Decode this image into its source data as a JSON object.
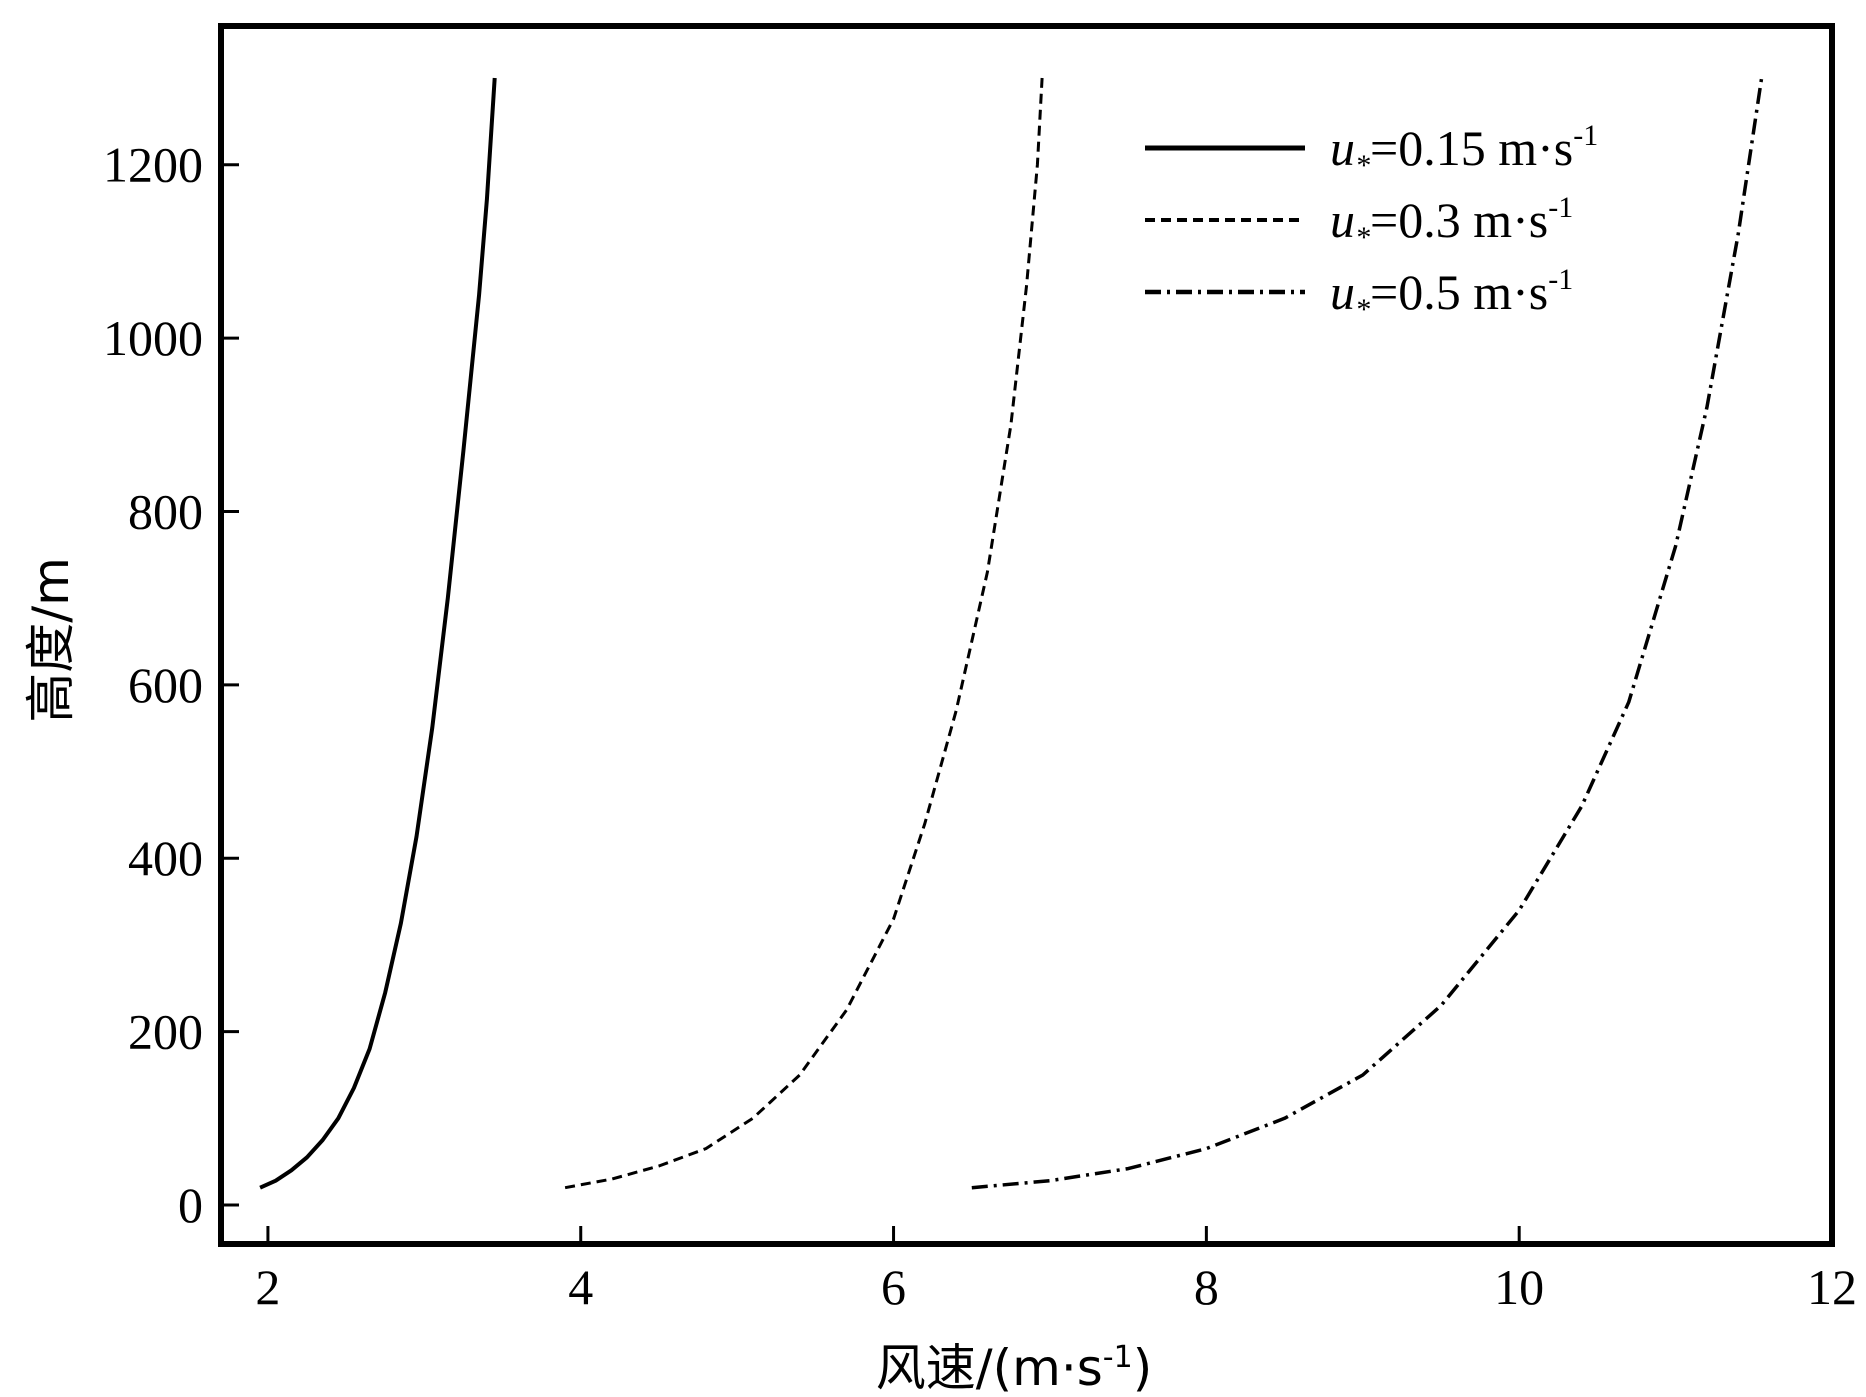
{
  "chart_data": {
    "type": "line",
    "title": "",
    "xlabel": "风速/(m·s",
    "xlabel_sup": "-1",
    "xlabel_end": ")",
    "ylabel": "高度/m",
    "xlim": [
      1.7,
      12
    ],
    "ylim": [
      -45,
      1360
    ],
    "xticks": [
      2,
      4,
      6,
      8,
      10,
      12
    ],
    "yticks": [
      0,
      200,
      400,
      600,
      800,
      1000,
      1200
    ],
    "grid": false,
    "legend_position": "top-right",
    "series": [
      {
        "name": "u*=0.15 m·s-1",
        "legend": {
          "u": "u",
          "sub": "*",
          "text": "=0.15 m·s",
          "sup": "-1"
        },
        "style": "solid",
        "color": "#000000",
        "points": [
          {
            "x": 1.95,
            "y": 20
          },
          {
            "x": 2.05,
            "y": 28
          },
          {
            "x": 2.15,
            "y": 40
          },
          {
            "x": 2.25,
            "y": 55
          },
          {
            "x": 2.35,
            "y": 75
          },
          {
            "x": 2.45,
            "y": 100
          },
          {
            "x": 2.55,
            "y": 135
          },
          {
            "x": 2.65,
            "y": 180
          },
          {
            "x": 2.75,
            "y": 245
          },
          {
            "x": 2.85,
            "y": 325
          },
          {
            "x": 2.95,
            "y": 425
          },
          {
            "x": 3.05,
            "y": 550
          },
          {
            "x": 3.15,
            "y": 700
          },
          {
            "x": 3.25,
            "y": 870
          },
          {
            "x": 3.35,
            "y": 1050
          },
          {
            "x": 3.4,
            "y": 1160
          },
          {
            "x": 3.45,
            "y": 1300
          }
        ]
      },
      {
        "name": "u*=0.3 m·s-1",
        "legend": {
          "u": "u",
          "sub": "*",
          "text": "=0.3 m·s",
          "sup": "-1"
        },
        "style": "dashed",
        "color": "#000000",
        "points": [
          {
            "x": 3.9,
            "y": 20
          },
          {
            "x": 4.2,
            "y": 30
          },
          {
            "x": 4.5,
            "y": 45
          },
          {
            "x": 4.8,
            "y": 65
          },
          {
            "x": 5.1,
            "y": 100
          },
          {
            "x": 5.4,
            "y": 150
          },
          {
            "x": 5.7,
            "y": 225
          },
          {
            "x": 6.0,
            "y": 330
          },
          {
            "x": 6.2,
            "y": 440
          },
          {
            "x": 6.4,
            "y": 570
          },
          {
            "x": 6.6,
            "y": 730
          },
          {
            "x": 6.75,
            "y": 900
          },
          {
            "x": 6.85,
            "y": 1060
          },
          {
            "x": 6.92,
            "y": 1200
          },
          {
            "x": 6.95,
            "y": 1300
          }
        ]
      },
      {
        "name": "u*=0.5 m·s-1",
        "legend": {
          "u": "u",
          "sub": "*",
          "text": "=0.5 m·s",
          "sup": "-1"
        },
        "style": "dashdot",
        "color": "#000000",
        "points": [
          {
            "x": 6.5,
            "y": 20
          },
          {
            "x": 7.0,
            "y": 28
          },
          {
            "x": 7.5,
            "y": 42
          },
          {
            "x": 8.0,
            "y": 65
          },
          {
            "x": 8.5,
            "y": 100
          },
          {
            "x": 9.0,
            "y": 150
          },
          {
            "x": 9.5,
            "y": 230
          },
          {
            "x": 10.0,
            "y": 340
          },
          {
            "x": 10.4,
            "y": 460
          },
          {
            "x": 10.7,
            "y": 580
          },
          {
            "x": 11.0,
            "y": 760
          },
          {
            "x": 11.2,
            "y": 920
          },
          {
            "x": 11.4,
            "y": 1120
          },
          {
            "x": 11.55,
            "y": 1300
          }
        ]
      }
    ]
  }
}
